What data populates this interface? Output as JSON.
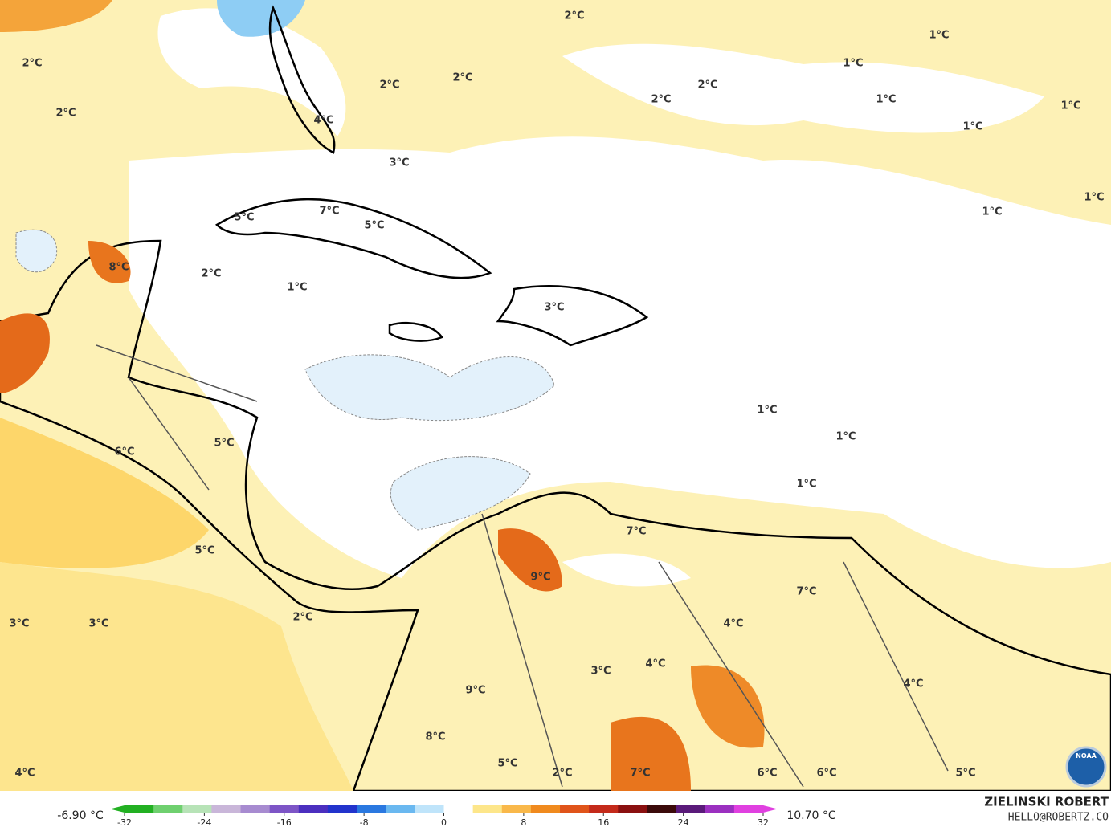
{
  "labels": [
    "2°C",
    "1°C",
    "2°C",
    "1°C",
    "2°C",
    "2°C",
    "2°C",
    "2°C",
    "1°C",
    "1°C",
    "2°C",
    "4°C",
    "1°C",
    "3°C",
    "1°C",
    "1°C",
    "7°C",
    "5°C",
    "5°C",
    "8°C",
    "2°C",
    "1°C",
    "3°C",
    "1°C",
    "1°C",
    "5°C",
    "6°C",
    "1°C",
    "7°C",
    "5°C",
    "9°C",
    "7°C",
    "2°C",
    "3°C",
    "3°C",
    "4°C",
    "4°C",
    "3°C",
    "4°C",
    "9°C",
    "8°C",
    "5°C",
    "2°C",
    "7°C",
    "6°C",
    "6°C",
    "5°C",
    "4°C"
  ],
  "colorbar": {
    "min_label": "-6.90 °C",
    "max_label": "10.70 °C",
    "range": [
      -32,
      32
    ],
    "ticks": [
      -32,
      -24,
      -16,
      -8,
      0,
      8,
      16,
      24,
      32
    ],
    "colors": [
      "#22b022",
      "#6fd06f",
      "#b7e3b7",
      "#c9b6d9",
      "#a78bd0",
      "#7d55c6",
      "#4b2fbf",
      "#2233cc",
      "#2a78e0",
      "#6ab8f0",
      "#bfe4fa",
      "#ffffff",
      "#fde68a",
      "#f9b84a",
      "#f08a1e",
      "#e0541a",
      "#c42a1a",
      "#8a1010",
      "#3b0a0a",
      "#5a1a7a",
      "#9b30c0",
      "#e040e0"
    ]
  },
  "credit": {
    "name": "ZIELINSKI ROBERT",
    "email": "HELLO@ROBERTZ.CO"
  },
  "logo": "NOAA"
}
